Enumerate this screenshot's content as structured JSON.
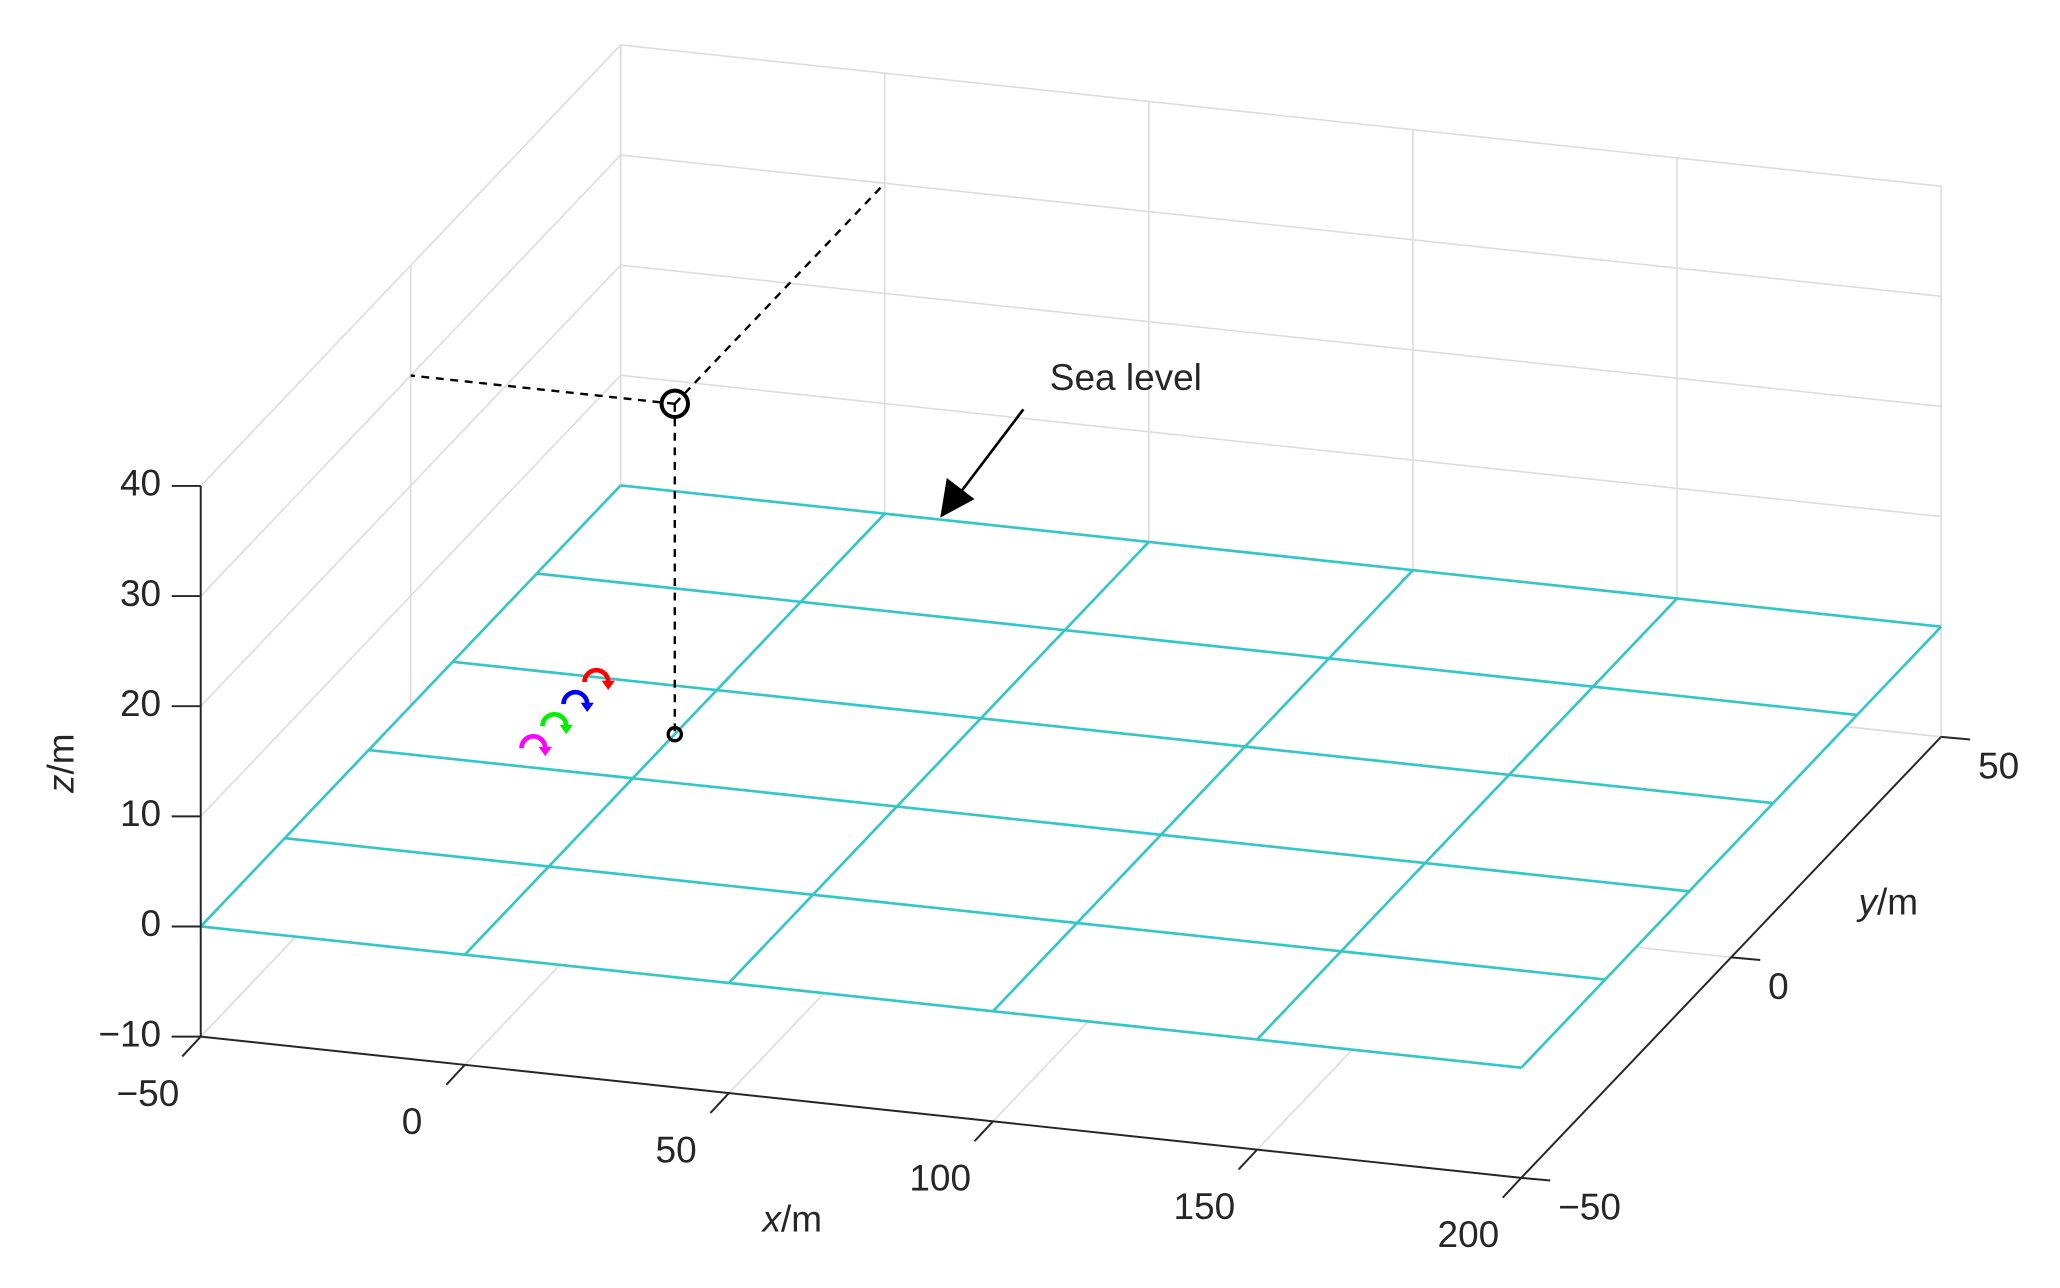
{
  "chart_data": {
    "type": "scatter3d",
    "xlabel": "x/m",
    "ylabel": "y/m",
    "zlabel": "z/m",
    "xlim": [
      -50,
      200
    ],
    "ylim": [
      -50,
      50
    ],
    "zlim": [
      -10,
      40
    ],
    "xticks": [
      {
        "value": -50,
        "label": "−50"
      },
      0,
      50,
      100,
      150,
      200
    ],
    "yticks": [
      {
        "value": -50,
        "label": "−50"
      },
      0,
      50
    ],
    "zticks": [
      {
        "value": -10,
        "label": "−10"
      },
      0,
      10,
      20,
      30,
      40
    ],
    "grid": true,
    "surface": {
      "x": [
        -50,
        0,
        50,
        100,
        150,
        200
      ],
      "y": [
        -50,
        -30,
        -10,
        10,
        30,
        50
      ],
      "z": 0,
      "color": "#33c6c6"
    },
    "points": [
      {
        "x": 0,
        "y": 0,
        "z": 30,
        "color": "#000000",
        "marker": "circle",
        "size": 10
      },
      {
        "x": 0,
        "y": 0,
        "z": 0,
        "color": "#000000",
        "marker": "circle",
        "size": 5
      }
    ],
    "receivers": {
      "x": [
        -22,
        -22,
        -22,
        -22
      ],
      "y": [
        9,
        4,
        -1,
        -6
      ],
      "z": [
        0,
        0,
        0,
        0
      ],
      "colors": [
        "#ff0000",
        "#0000ff",
        "#00ee00",
        "#ff00ff"
      ]
    },
    "annotation": "Sea level"
  }
}
